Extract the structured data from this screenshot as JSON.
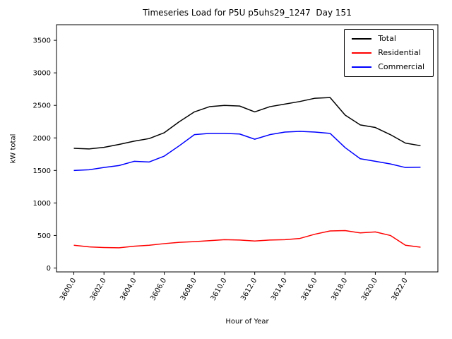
{
  "figure": {
    "title": "Timeseries Load for P5U p5uhs29_1247  Day 151",
    "xlabel": "Hour of Year",
    "ylabel": "kW total"
  },
  "chart_data": {
    "type": "line",
    "title": "Timeseries Load for P5U p5uhs29_1247  Day 151",
    "xlabel": "Hour of Year",
    "ylabel": "kW total",
    "grid": false,
    "legend_position": "upper right",
    "x": [
      3600,
      3601,
      3602,
      3603,
      3604,
      3605,
      3606,
      3607,
      3608,
      3609,
      3610,
      3611,
      3612,
      3613,
      3614,
      3615,
      3616,
      3617,
      3618,
      3619,
      3620,
      3621,
      3622,
      3623
    ],
    "series": [
      {
        "name": "Total",
        "color": "#000000",
        "values": [
          1840,
          1830,
          1855,
          1900,
          1950,
          1990,
          2080,
          2250,
          2400,
          2480,
          2500,
          2490,
          2400,
          2480,
          2520,
          2560,
          2610,
          2620,
          2350,
          2200,
          2160,
          2050,
          1920,
          1880
        ]
      },
      {
        "name": "Residential",
        "color": "#ff0000",
        "values": [
          350,
          325,
          315,
          310,
          335,
          350,
          375,
          395,
          405,
          420,
          435,
          430,
          415,
          430,
          435,
          455,
          520,
          570,
          575,
          540,
          555,
          500,
          350,
          320
        ]
      },
      {
        "name": "Commercial",
        "color": "#0000ff",
        "values": [
          1500,
          1510,
          1545,
          1575,
          1640,
          1630,
          1720,
          1880,
          2050,
          2070,
          2070,
          2060,
          1980,
          2050,
          2090,
          2100,
          2090,
          2070,
          1850,
          1680,
          1640,
          1600,
          1545,
          1550
        ]
      }
    ],
    "xticks": [
      3600,
      3602,
      3604,
      3606,
      3608,
      3610,
      3612,
      3614,
      3616,
      3618,
      3620,
      3622
    ],
    "xtick_labels": [
      "3600.0",
      "3602.0",
      "3604.0",
      "3606.0",
      "3608.0",
      "3610.0",
      "3612.0",
      "3614.0",
      "3616.0",
      "3618.0",
      "3620.0",
      "3622.0"
    ],
    "yticks": [
      0,
      500,
      1000,
      1500,
      2000,
      2500,
      3000,
      3500
    ],
    "ylim": [
      -60,
      3740
    ]
  }
}
